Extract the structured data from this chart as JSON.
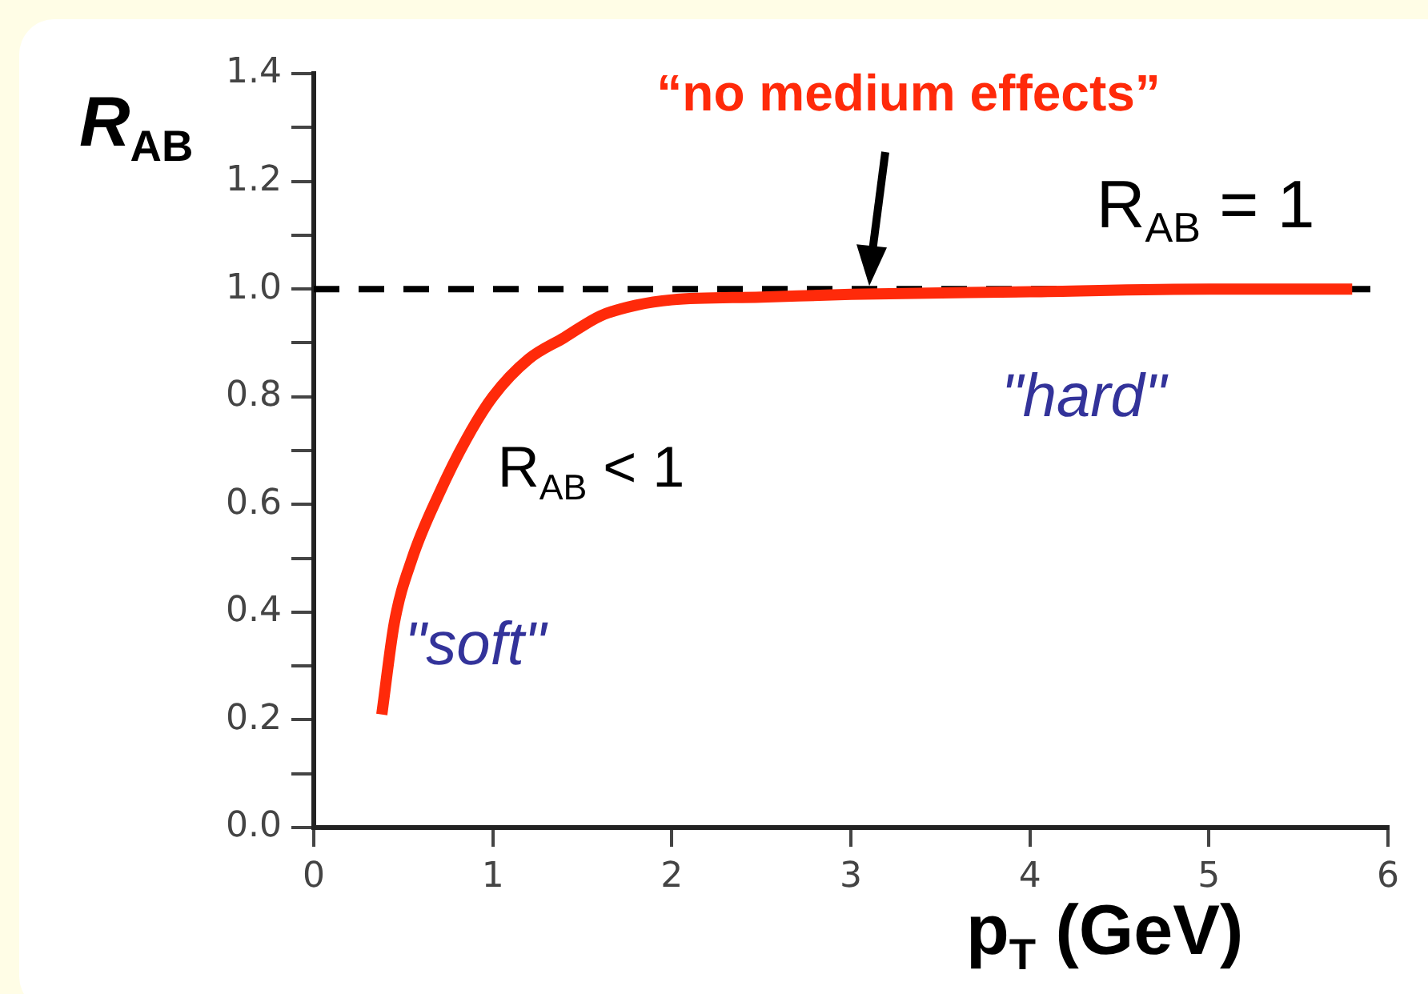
{
  "chart_data": {
    "type": "line",
    "xlabel": "p$_{T}$ (GeV)",
    "ylabel": "R$_{AB}$",
    "x": [
      0.38,
      0.45,
      0.55,
      0.7,
      0.85,
      1.0,
      1.2,
      1.4,
      1.6,
      1.8,
      2.0,
      2.5,
      3.0,
      4.0,
      5.0,
      5.8
    ],
    "series": [
      {
        "color": "#ff2a0a",
        "values": [
          0.21,
          0.38,
          0.5,
          0.62,
          0.72,
          0.8,
          0.87,
          0.91,
          0.95,
          0.97,
          0.98,
          0.985,
          0.99,
          0.995,
          1.0,
          1.0
        ]
      }
    ],
    "xlim": [
      0,
      6
    ],
    "xticks": [
      0,
      1,
      2,
      3,
      4,
      5,
      6
    ],
    "ylim": [
      0,
      1.4
    ],
    "yticks": [
      {
        "value": 0,
        "label": "0.0"
      },
      {
        "value": 0.1,
        "label": null
      },
      {
        "value": 0.2,
        "label": "0.2"
      },
      {
        "value": 0.3,
        "label": null
      },
      {
        "value": 0.4,
        "label": "0.4"
      },
      {
        "value": 0.5,
        "label": null
      },
      {
        "value": 0.6,
        "label": "0.6"
      },
      {
        "value": 0.7,
        "label": null
      },
      {
        "value": 0.8,
        "label": "0.8"
      },
      {
        "value": 0.9,
        "label": null
      },
      {
        "value": 1.0,
        "label": "1.0"
      },
      {
        "value": 1.1,
        "label": null
      },
      {
        "value": 1.2,
        "label": "1.2"
      },
      {
        "value": 1.3,
        "label": null
      },
      {
        "value": 1.4,
        "label": "1.4"
      }
    ],
    "ref_lines": [
      {
        "axis": "y",
        "value": 1,
        "label": "R$_{AB}$ = 1",
        "color": "#000000",
        "line_style": "dashed"
      }
    ],
    "annotations": [
      "“no medium effects”",
      "R$_{AB}$ < 1",
      "\"soft\"",
      "\"hard\""
    ],
    "grid": false,
    "legend": false,
    "marker": "none",
    "line_style": "solid"
  }
}
